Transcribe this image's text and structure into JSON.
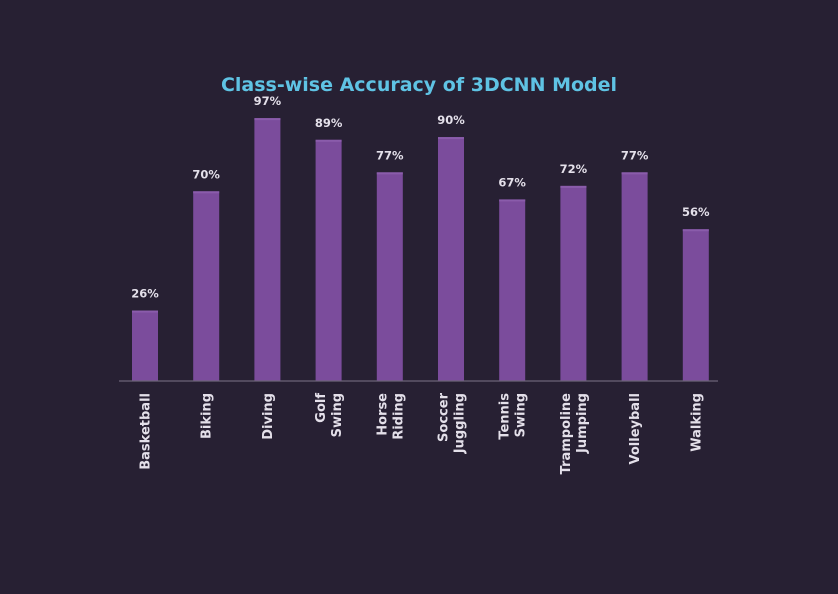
{
  "colors": {
    "background": "#272033",
    "bar": "#7b4c9c",
    "bar_highlight": "#8a5cab",
    "axis": "#6c6478",
    "title": "#5fc3e4",
    "label": "#e4e0ea"
  },
  "chart_data": {
    "type": "bar",
    "title": "Class-wise Accuracy of 3DCNN Model",
    "categories": [
      [
        "Basketball"
      ],
      [
        "Biking"
      ],
      [
        "Diving"
      ],
      [
        "Golf",
        "Swing"
      ],
      [
        "Horse",
        "Riding"
      ],
      [
        "Soccer",
        "Juggling"
      ],
      [
        "Tennis",
        "Swing"
      ],
      [
        "Trampoline",
        "Jumping"
      ],
      [
        "Volleyball"
      ],
      [
        "Walking"
      ]
    ],
    "values": [
      26,
      70,
      97,
      89,
      77,
      90,
      67,
      72,
      77,
      56
    ],
    "value_labels": [
      "26%",
      "70%",
      "97%",
      "89%",
      "77%",
      "90%",
      "67%",
      "72%",
      "77%",
      "56%"
    ],
    "ylim": [
      0,
      100
    ],
    "xlabel": "",
    "ylabel": "",
    "grid": false,
    "legend": "none",
    "category_label_rotation": "vertical"
  }
}
